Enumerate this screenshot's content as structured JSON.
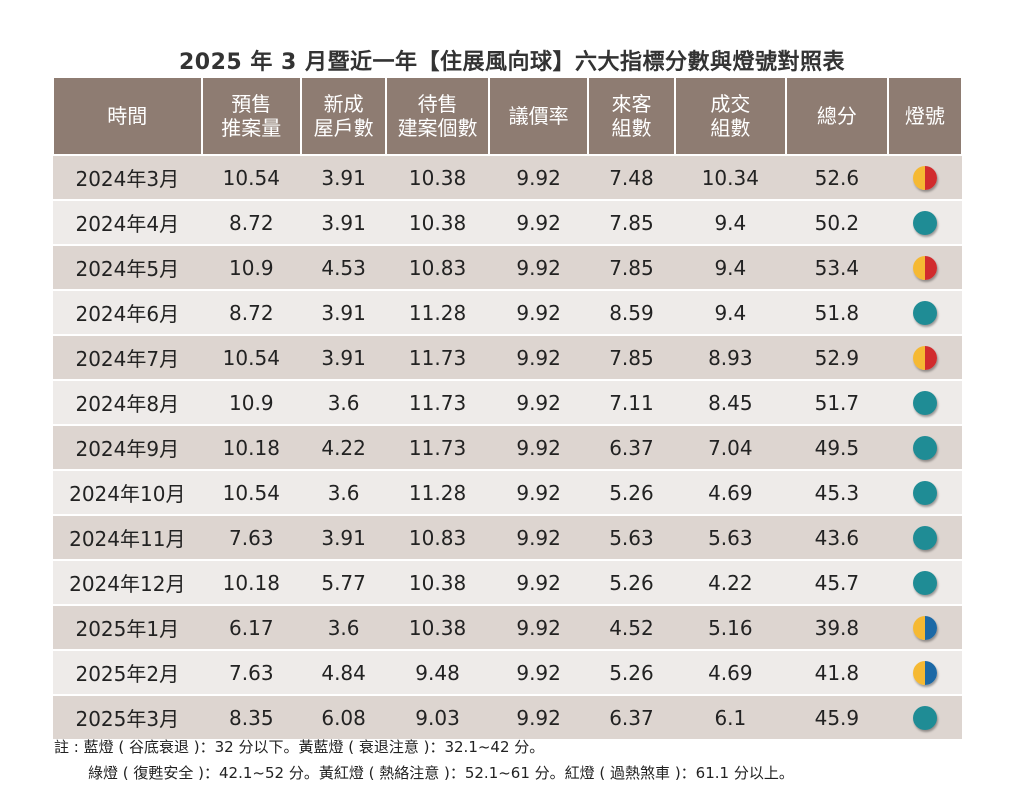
{
  "title": "2025 年 3 月暨近一年【住展風向球】六大指標分數與燈號對照表",
  "headers": {
    "time": "時間",
    "presale_1": "預售",
    "presale_2": "推案量",
    "new_1": "新成",
    "new_2": "屋戶數",
    "stock_1": "待售",
    "stock_2": "建案個數",
    "bargain": "議價率",
    "visit_1": "來客",
    "visit_2": "組數",
    "deal_1": "成交",
    "deal_2": "組數",
    "total": "總分",
    "light": "燈號"
  },
  "rows": [
    {
      "time": "2024年3月",
      "presale": "10.54",
      "new_house": "3.91",
      "stock": "10.38",
      "bargain": "9.92",
      "visitors": "7.48",
      "deals": "10.34",
      "total": "52.6",
      "light": "yellow-red"
    },
    {
      "time": "2024年4月",
      "presale": "8.72",
      "new_house": "3.91",
      "stock": "10.38",
      "bargain": "9.92",
      "visitors": "7.85",
      "deals": "9.4",
      "total": "50.2",
      "light": "green"
    },
    {
      "time": "2024年5月",
      "presale": "10.9",
      "new_house": "4.53",
      "stock": "10.83",
      "bargain": "9.92",
      "visitors": "7.85",
      "deals": "9.4",
      "total": "53.4",
      "light": "yellow-red"
    },
    {
      "time": "2024年6月",
      "presale": "8.72",
      "new_house": "3.91",
      "stock": "11.28",
      "bargain": "9.92",
      "visitors": "8.59",
      "deals": "9.4",
      "total": "51.8",
      "light": "green"
    },
    {
      "time": "2024年7月",
      "presale": "10.54",
      "new_house": "3.91",
      "stock": "11.73",
      "bargain": "9.92",
      "visitors": "7.85",
      "deals": "8.93",
      "total": "52.9",
      "light": "yellow-red"
    },
    {
      "time": "2024年8月",
      "presale": "10.9",
      "new_house": "3.6",
      "stock": "11.73",
      "bargain": "9.92",
      "visitors": "7.11",
      "deals": "8.45",
      "total": "51.7",
      "light": "green"
    },
    {
      "time": "2024年9月",
      "presale": "10.18",
      "new_house": "4.22",
      "stock": "11.73",
      "bargain": "9.92",
      "visitors": "6.37",
      "deals": "7.04",
      "total": "49.5",
      "light": "green"
    },
    {
      "time": "2024年10月",
      "presale": "10.54",
      "new_house": "3.6",
      "stock": "11.28",
      "bargain": "9.92",
      "visitors": "5.26",
      "deals": "4.69",
      "total": "45.3",
      "light": "green"
    },
    {
      "time": "2024年11月",
      "presale": "7.63",
      "new_house": "3.91",
      "stock": "10.83",
      "bargain": "9.92",
      "visitors": "5.63",
      "deals": "5.63",
      "total": "43.6",
      "light": "green"
    },
    {
      "time": "2024年12月",
      "presale": "10.18",
      "new_house": "5.77",
      "stock": "10.38",
      "bargain": "9.92",
      "visitors": "5.26",
      "deals": "4.22",
      "total": "45.7",
      "light": "green"
    },
    {
      "time": "2025年1月",
      "presale": "6.17",
      "new_house": "3.6",
      "stock": "10.38",
      "bargain": "9.92",
      "visitors": "4.52",
      "deals": "5.16",
      "total": "39.8",
      "light": "yellow-blue"
    },
    {
      "time": "2025年2月",
      "presale": "7.63",
      "new_house": "4.84",
      "stock": "9.48",
      "bargain": "9.92",
      "visitors": "5.26",
      "deals": "4.69",
      "total": "41.8",
      "light": "yellow-blue"
    },
    {
      "time": "2025年3月",
      "presale": "8.35",
      "new_house": "6.08",
      "stock": "9.03",
      "bargain": "9.92",
      "visitors": "6.37",
      "deals": "6.1",
      "total": "45.9",
      "light": "green"
    }
  ],
  "notes": {
    "line1": "註 : 藍燈 ( 谷底衰退 )：32 分以下。黃藍燈 ( 衰退注意 )：32.1~42 分。",
    "line2": "綠燈 ( 復甦安全 )：42.1~52 分。黃紅燈 ( 熱絡注意 )：52.1~61 分。紅燈 ( 過熱煞車 )：61.1 分以上。"
  },
  "colors": {
    "header_bg": "#8e7c72",
    "row_odd": "#ddd5d0",
    "row_even": "#eeebe9",
    "green_light": "#1f8c95",
    "yellow": "#f5b933",
    "red": "#d12c2e",
    "blue": "#1c69a6"
  }
}
